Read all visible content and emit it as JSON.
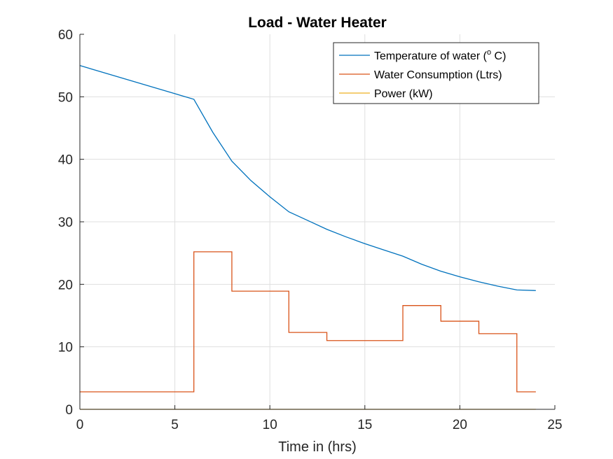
{
  "chart_data": {
    "type": "line",
    "title": "Load - Water Heater",
    "xlabel": "Time in (hrs)",
    "ylabel": "",
    "xlim": [
      0,
      25
    ],
    "ylim": [
      0,
      60
    ],
    "xticks": [
      0,
      5,
      10,
      15,
      20,
      25
    ],
    "yticks": [
      0,
      10,
      20,
      30,
      40,
      50,
      60
    ],
    "xtick_labels": [
      "0",
      "5",
      "10",
      "15",
      "20",
      "25"
    ],
    "ytick_labels": [
      "0",
      "10",
      "20",
      "30",
      "40",
      "50",
      "60"
    ],
    "grid": true,
    "legend_position": "top-right",
    "series": [
      {
        "name": "Temperature of water (",
        "name_sup": "o",
        "name_suffix": " C)",
        "color": "#0072BD",
        "step": false,
        "x": [
          0,
          6,
          7,
          8,
          9,
          10,
          11,
          12,
          13,
          14,
          15,
          16,
          17,
          18,
          19,
          20,
          21,
          22,
          23,
          24
        ],
        "y": [
          55,
          49.6,
          44.3,
          39.7,
          36.6,
          34.0,
          31.6,
          30.2,
          28.8,
          27.6,
          26.5,
          25.5,
          24.5,
          23.2,
          22.1,
          21.2,
          20.4,
          19.7,
          19.1,
          19.0
        ]
      },
      {
        "name": "Water Consumption (Ltrs)",
        "color": "#D95319",
        "step": true,
        "x": [
          0,
          5.9,
          6,
          8,
          11,
          13,
          17,
          19,
          21,
          23,
          24
        ],
        "y": [
          2.8,
          2.8,
          25.2,
          18.9,
          12.3,
          11.0,
          16.6,
          14.1,
          12.1,
          2.8,
          2.8
        ]
      },
      {
        "name": "Power (kW)",
        "color": "#EDB120",
        "step": false,
        "x": [
          0,
          24
        ],
        "y": [
          0,
          0
        ]
      }
    ]
  }
}
